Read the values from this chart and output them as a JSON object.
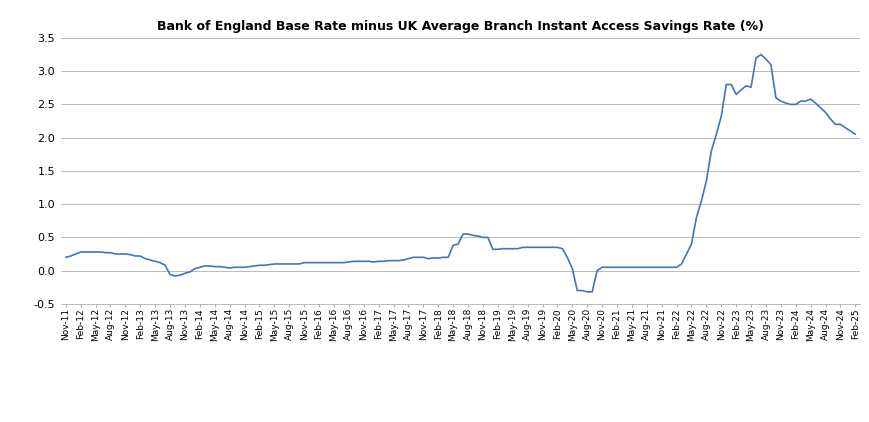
{
  "title": "Bank of England Base Rate minus UK Average Branch Instant Access Savings Rate (%)",
  "line_color": "#4472C4",
  "background_color": "#ffffff",
  "ylim": [
    -0.5,
    3.5
  ],
  "yticks": [
    -0.5,
    0.0,
    0.5,
    1.0,
    1.5,
    2.0,
    2.5,
    3.0,
    3.5
  ],
  "values": [
    0.2,
    0.22,
    0.25,
    0.28,
    0.28,
    0.28,
    0.28,
    0.28,
    0.27,
    0.27,
    0.25,
    0.25,
    0.25,
    0.24,
    0.22,
    0.22,
    0.18,
    0.16,
    0.14,
    0.12,
    0.08,
    -0.06,
    -0.08,
    -0.07,
    -0.04,
    -0.02,
    0.03,
    0.05,
    0.07,
    0.07,
    0.06,
    0.06,
    0.05,
    0.04,
    0.05,
    0.05,
    0.05,
    0.06,
    0.07,
    0.08,
    0.08,
    0.09,
    0.1,
    0.1,
    0.1,
    0.1,
    0.1,
    0.1,
    0.12,
    0.12,
    0.12,
    0.12,
    0.12,
    0.12,
    0.12,
    0.12,
    0.12,
    0.13,
    0.14,
    0.14,
    0.14,
    0.14,
    0.13,
    0.14,
    0.14,
    0.15,
    0.15,
    0.15,
    0.16,
    0.18,
    0.2,
    0.2,
    0.2,
    0.18,
    0.19,
    0.19,
    0.2,
    0.2,
    0.38,
    0.4,
    0.55,
    0.55,
    0.53,
    0.52,
    0.5,
    0.5,
    0.32,
    0.32,
    0.33,
    0.33,
    0.33,
    0.33,
    0.35,
    0.35,
    0.35,
    0.35,
    0.35,
    0.35,
    0.35,
    0.35,
    0.33,
    0.2,
    0.03,
    -0.3,
    -0.3,
    -0.32,
    -0.32,
    0.0,
    0.05,
    0.05,
    0.05,
    0.05,
    0.05,
    0.05,
    0.05,
    0.05,
    0.05,
    0.05,
    0.05,
    0.05,
    0.05,
    0.05,
    0.05,
    0.05,
    0.1,
    0.25,
    0.4,
    0.8,
    1.05,
    1.35,
    1.8,
    2.05,
    2.32,
    2.8,
    2.8,
    2.65,
    2.72,
    2.78,
    2.76,
    3.2,
    3.25,
    3.18,
    3.1,
    2.6,
    2.55,
    2.52,
    2.5,
    2.5,
    2.55,
    2.55,
    2.58,
    2.52,
    2.45,
    2.38,
    2.28,
    2.2,
    2.2,
    2.15,
    2.1,
    2.05
  ],
  "xtick_labels": [
    "Nov-11",
    "Feb-12",
    "May-12",
    "Aug-12",
    "Nov-12",
    "Feb-13",
    "May-13",
    "Aug-13",
    "Nov-13",
    "Feb-14",
    "May-14",
    "Aug-14",
    "Nov-14",
    "Feb-15",
    "May-15",
    "Aug-15",
    "Nov-15",
    "Feb-16",
    "May-16",
    "Aug-16",
    "Nov-16",
    "Feb-17",
    "May-17",
    "Aug-17",
    "Nov-17",
    "Feb-18",
    "May-18",
    "Aug-18",
    "Nov-18",
    "Feb-19",
    "May-19",
    "Aug-19",
    "Nov-19",
    "Feb-20",
    "May-20",
    "Aug-20",
    "Nov-20",
    "Feb-21",
    "May-21",
    "Aug-21",
    "Nov-21",
    "Feb-22",
    "May-22",
    "Aug-22",
    "Nov-22",
    "Feb-23",
    "May-23",
    "Aug-23",
    "Nov-23",
    "Feb-24",
    "May-24",
    "Aug-24",
    "Nov-24",
    "Feb-25"
  ],
  "xtick_indices": [
    0,
    3,
    6,
    9,
    12,
    15,
    18,
    21,
    24,
    27,
    30,
    33,
    36,
    39,
    42,
    45,
    48,
    51,
    54,
    57,
    60,
    63,
    66,
    69,
    72,
    75,
    78,
    81,
    84,
    87,
    90,
    93,
    96,
    99,
    102,
    105,
    108,
    111,
    114,
    117,
    120,
    123,
    126,
    129,
    132,
    135,
    138,
    141,
    144,
    147,
    150,
    153,
    156,
    159
  ]
}
